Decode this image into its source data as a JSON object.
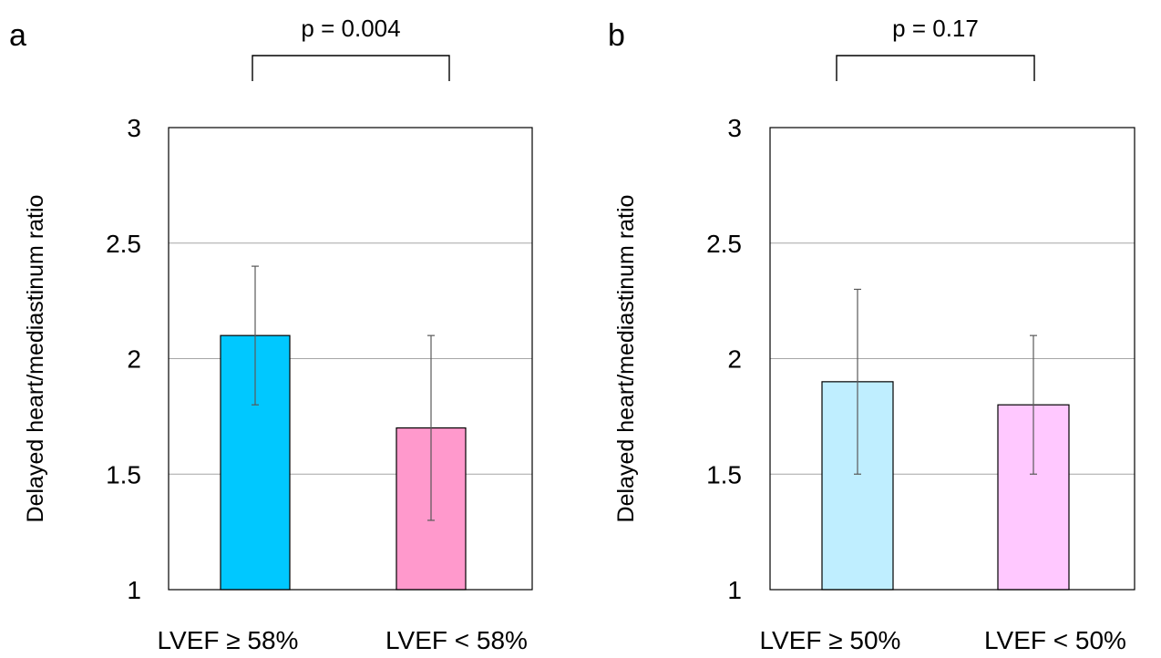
{
  "chart_data": [
    {
      "type": "bar",
      "panel": "a",
      "categories": [
        "LVEF ≥ 58%",
        "LVEF < 58%"
      ],
      "values": [
        2.1,
        1.7
      ],
      "error_bars": [
        [
          1.8,
          2.4
        ],
        [
          1.3,
          2.1
        ]
      ],
      "colors": [
        "#00c8ff",
        "#ff99cc"
      ],
      "p_value": "p = 0.004",
      "ylabel": "Delayed heart/mediastinum ratio",
      "ylim": [
        1,
        3
      ],
      "yticks": [
        "1",
        "1.5",
        "2",
        "2.5",
        "3"
      ],
      "grid": true
    },
    {
      "type": "bar",
      "panel": "b",
      "categories": [
        "LVEF ≥ 50%",
        "LVEF < 50%"
      ],
      "values": [
        1.9,
        1.8
      ],
      "error_bars": [
        [
          1.5,
          2.3
        ],
        [
          1.5,
          2.1
        ]
      ],
      "colors": [
        "#bfeeff",
        "#ffc8ff"
      ],
      "p_value": "p = 0.17",
      "ylabel": "Delayed heart/mediastinum ratio",
      "ylim": [
        1,
        3
      ],
      "yticks": [
        "1",
        "1.5",
        "2",
        "2.5",
        "3"
      ],
      "grid": true
    }
  ]
}
